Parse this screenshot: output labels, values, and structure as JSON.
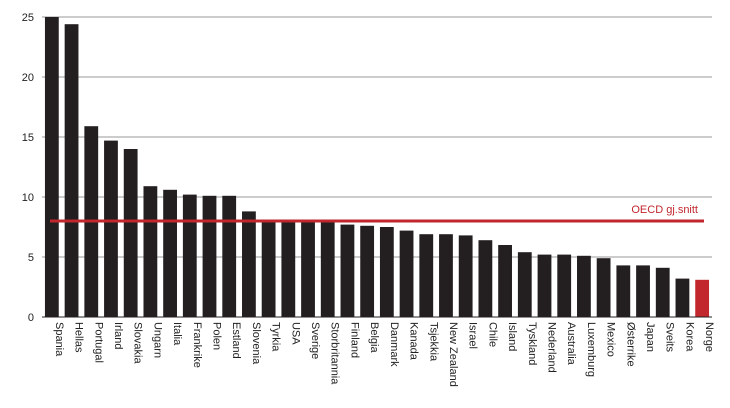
{
  "chart_data": {
    "type": "bar",
    "title": "",
    "xlabel": "",
    "ylabel": "",
    "ylim": [
      0,
      25
    ],
    "yticks": [
      0,
      5,
      10,
      15,
      20,
      25
    ],
    "grid": true,
    "categories": [
      "Spania",
      "Hellas",
      "Portugal",
      "Irland",
      "Slovakia",
      "Ungarn",
      "Italia",
      "Frankrike",
      "Polen",
      "Estland",
      "Slovenia",
      "Tyrkia",
      "USA",
      "Sverige",
      "Storbritannia",
      "Finland",
      "Belgia",
      "Danmark",
      "Kanada",
      "Tsjekkia",
      "New Zealand",
      "Israel",
      "Chile",
      "Island",
      "Tyskland",
      "Nederland",
      "Australia",
      "Luxemburg",
      "Mexico",
      "Østerrike",
      "Japan",
      "Sveits",
      "Korea",
      "Norge"
    ],
    "values": [
      25.0,
      24.4,
      15.9,
      14.7,
      14.0,
      10.9,
      10.6,
      10.2,
      10.1,
      10.1,
      8.8,
      8.1,
      8.1,
      8.0,
      8.0,
      7.7,
      7.6,
      7.5,
      7.2,
      6.9,
      6.9,
      6.8,
      6.4,
      6.0,
      5.4,
      5.2,
      5.2,
      5.1,
      4.9,
      4.3,
      4.3,
      4.1,
      3.2,
      3.1
    ],
    "highlight": "Norge",
    "colors": {
      "bar": "#231f20",
      "highlight": "#c1272d",
      "reference": "#c1272d",
      "grid": "#999999"
    },
    "reference_line": {
      "value": 8.0,
      "label": "OECD gj.snitt"
    }
  }
}
